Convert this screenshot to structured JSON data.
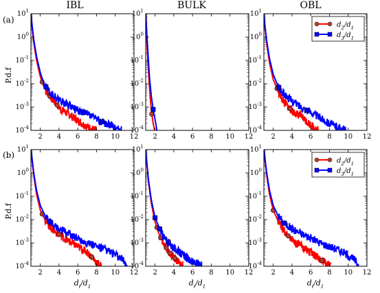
{
  "figure": {
    "column_titles": [
      "IBL",
      "BULK",
      "OBL"
    ],
    "row_labels": [
      "(a)",
      "(b)"
    ],
    "ylabel": "P.d.f",
    "xlabel": "d_i/d_1",
    "legend": [
      "d_2/d_1",
      "d_3/d_1"
    ]
  },
  "chart_data": [
    {
      "type": "line",
      "panel": "a-IBL",
      "title": "IBL",
      "row": "(a)",
      "xlabel": "",
      "ylabel": "P.d.f",
      "yscale": "log",
      "xlim": [
        1,
        12
      ],
      "ylim": [
        0.0001,
        10
      ],
      "xticks": [
        2,
        4,
        6,
        8,
        10,
        12
      ],
      "yticks": [
        0.0001,
        0.001,
        0.01,
        0.1,
        1,
        10
      ],
      "legend": "none",
      "grid": false,
      "series": [
        {
          "name": "d_2/d_1",
          "color": "#ff0000",
          "marker": "circle",
          "x": [
            1.0,
            1.1,
            1.3,
            1.6,
            2.0,
            2.4,
            3.0,
            3.6,
            4.2,
            5.0,
            5.8,
            6.6,
            7.4,
            8.0
          ],
          "y": [
            10,
            3,
            0.6,
            0.1,
            0.02,
            0.007,
            0.003,
            0.0015,
            0.0008,
            0.0005,
            0.0003,
            0.00018,
            0.00012,
            0.0001
          ],
          "markers_x": [
            2.2,
            3.0,
            3.8
          ]
        },
        {
          "name": "d_3/d_1",
          "color": "#0000ff",
          "marker": "square",
          "x": [
            1.0,
            1.1,
            1.3,
            1.6,
            2.0,
            2.4,
            3.0,
            4.0,
            5.0,
            6.0,
            7.0,
            8.0,
            9.0,
            10.0,
            10.7
          ],
          "y": [
            10,
            4,
            0.8,
            0.15,
            0.03,
            0.01,
            0.004,
            0.002,
            0.0012,
            0.0007,
            0.0005,
            0.0003,
            0.0002,
            0.00013,
            0.0001
          ],
          "markers_x": [
            2.6,
            6.6,
            8.6
          ]
        }
      ]
    },
    {
      "type": "line",
      "panel": "a-BULK",
      "title": "BULK",
      "row": "(a)",
      "xlabel": "",
      "ylabel": "",
      "yscale": "log",
      "xlim": [
        1,
        12
      ],
      "ylim": [
        0.0001,
        10
      ],
      "xticks": [
        2,
        4,
        6,
        8,
        10,
        12
      ],
      "yticks": [
        0.0001,
        0.001,
        0.01,
        0.1,
        1,
        10
      ],
      "legend": "none",
      "grid": false,
      "series": [
        {
          "name": "d_2/d_1",
          "color": "#ff0000",
          "marker": "circle",
          "x": [
            1.0,
            1.1,
            1.2,
            1.35,
            1.5,
            1.65,
            1.8,
            1.95
          ],
          "y": [
            10,
            1.5,
            0.15,
            0.015,
            0.002,
            0.0005,
            0.0002,
            0.0001
          ],
          "markers_x": [
            1.65
          ]
        },
        {
          "name": "d_3/d_1",
          "color": "#0000ff",
          "marker": "square",
          "x": [
            1.0,
            1.1,
            1.25,
            1.4,
            1.6,
            1.8,
            2.0,
            2.2
          ],
          "y": [
            10,
            2,
            0.2,
            0.02,
            0.003,
            0.0008,
            0.0003,
            0.0001
          ],
          "markers_x": [
            1.8
          ]
        }
      ]
    },
    {
      "type": "line",
      "panel": "a-OBL",
      "title": "OBL",
      "row": "(a)",
      "xlabel": "",
      "ylabel": "",
      "yscale": "log",
      "xlim": [
        1,
        12
      ],
      "ylim": [
        0.0001,
        10
      ],
      "xticks": [
        2,
        4,
        6,
        8,
        10,
        12
      ],
      "yticks": [
        0.0001,
        0.001,
        0.01,
        0.1,
        1,
        10
      ],
      "legend": "top-right",
      "grid": false,
      "series": [
        {
          "name": "d_2/d_1",
          "color": "#ff0000",
          "marker": "circle",
          "x": [
            1.0,
            1.1,
            1.3,
            1.6,
            2.0,
            2.5,
            3.0,
            3.6,
            4.2,
            5.0,
            5.8,
            6.4,
            6.8
          ],
          "y": [
            10,
            3,
            0.5,
            0.08,
            0.015,
            0.005,
            0.002,
            0.001,
            0.0006,
            0.0004,
            0.0002,
            0.00013,
            0.0001
          ],
          "markers_x": [
            2.4,
            3.8
          ]
        },
        {
          "name": "d_3/d_1",
          "color": "#0000ff",
          "marker": "square",
          "x": [
            1.0,
            1.1,
            1.3,
            1.6,
            2.0,
            2.5,
            3.0,
            4.0,
            5.0,
            6.0,
            7.0,
            8.0,
            9.0,
            9.8
          ],
          "y": [
            10,
            3.5,
            0.7,
            0.12,
            0.025,
            0.008,
            0.004,
            0.0018,
            0.001,
            0.0006,
            0.00035,
            0.0002,
            0.00013,
            0.0001
          ],
          "markers_x": [
            2.6,
            5.6
          ]
        }
      ]
    },
    {
      "type": "line",
      "panel": "b-IBL",
      "title": "",
      "row": "(b)",
      "xlabel": "d_i/d_1",
      "ylabel": "P.d.f",
      "yscale": "log",
      "xlim": [
        1,
        12
      ],
      "ylim": [
        0.0001,
        10
      ],
      "xticks": [
        2,
        4,
        6,
        8,
        10,
        12
      ],
      "yticks": [
        0.0001,
        0.001,
        0.01,
        0.1,
        1,
        10
      ],
      "legend": "none",
      "grid": false,
      "series": [
        {
          "name": "d_2/d_1",
          "color": "#ff0000",
          "marker": "circle",
          "x": [
            1.0,
            1.1,
            1.3,
            1.6,
            2.0,
            2.5,
            3.0,
            3.6,
            4.2,
            5.0,
            6.0,
            7.0,
            7.5,
            8.0,
            8.5
          ],
          "y": [
            10,
            4,
            0.8,
            0.12,
            0.025,
            0.01,
            0.005,
            0.003,
            0.002,
            0.0012,
            0.0007,
            0.0004,
            0.00025,
            0.00015,
            0.0001
          ],
          "markers_x": [
            2.2,
            4.0,
            7.5
          ]
        },
        {
          "name": "d_3/d_1",
          "color": "#0000ff",
          "marker": "square",
          "x": [
            1.0,
            1.1,
            1.3,
            1.6,
            2.0,
            2.5,
            3.0,
            4.0,
            5.0,
            6.0,
            7.0,
            8.0,
            9.0,
            10.0,
            10.8,
            11.3
          ],
          "y": [
            10,
            5,
            1,
            0.18,
            0.04,
            0.015,
            0.008,
            0.004,
            0.0025,
            0.0016,
            0.001,
            0.0007,
            0.0005,
            0.0003,
            0.00018,
            0.0001
          ],
          "markers_x": [
            3.0
          ]
        }
      ]
    },
    {
      "type": "line",
      "panel": "b-BULK",
      "title": "",
      "row": "(b)",
      "xlabel": "d_i/d_1",
      "ylabel": "",
      "yscale": "log",
      "xlim": [
        1,
        12
      ],
      "ylim": [
        0.0001,
        10
      ],
      "xticks": [
        2,
        4,
        6,
        8,
        10,
        12
      ],
      "yticks": [
        0.0001,
        0.001,
        0.01,
        0.1,
        1,
        10
      ],
      "legend": "none",
      "grid": false,
      "series": [
        {
          "name": "d_2/d_1",
          "color": "#ff0000",
          "marker": "circle",
          "x": [
            1.0,
            1.1,
            1.3,
            1.6,
            2.0,
            2.5,
            3.0,
            3.5,
            4.0,
            4.5,
            5.0
          ],
          "y": [
            10,
            3,
            0.4,
            0.05,
            0.008,
            0.002,
            0.0008,
            0.0004,
            0.00025,
            0.00014,
            0.0001
          ],
          "markers_x": [
            2.2,
            2.6,
            3.2,
            3.6,
            4.1
          ]
        },
        {
          "name": "d_3/d_1",
          "color": "#0000ff",
          "marker": "square",
          "x": [
            1.0,
            1.1,
            1.3,
            1.6,
            2.0,
            2.5,
            3.0,
            4.0,
            5.0,
            6.0,
            7.0
          ],
          "y": [
            10,
            3.5,
            0.5,
            0.07,
            0.012,
            0.004,
            0.0016,
            0.0006,
            0.0003,
            0.00015,
            0.0001
          ],
          "markers_x": [
            2.0,
            2.5,
            3.4
          ]
        }
      ]
    },
    {
      "type": "line",
      "panel": "b-OBL",
      "title": "",
      "row": "(b)",
      "xlabel": "d_i/d_1",
      "ylabel": "",
      "yscale": "log",
      "xlim": [
        1,
        12
      ],
      "ylim": [
        0.0001,
        10
      ],
      "xticks": [
        2,
        4,
        6,
        8,
        10,
        12
      ],
      "yticks": [
        0.0001,
        0.001,
        0.01,
        0.1,
        1,
        10
      ],
      "legend": "top-right",
      "grid": false,
      "series": [
        {
          "name": "d_2/d_1",
          "color": "#ff0000",
          "marker": "circle",
          "x": [
            1.0,
            1.1,
            1.3,
            1.6,
            2.0,
            2.5,
            3.0,
            3.6,
            4.2,
            5.0,
            6.0,
            7.0,
            7.6,
            8.1
          ],
          "y": [
            10,
            4,
            0.8,
            0.12,
            0.025,
            0.009,
            0.004,
            0.002,
            0.0012,
            0.0007,
            0.0004,
            0.0002,
            0.00014,
            0.0001
          ],
          "markers_x": [
            2.0,
            3.6,
            7.2
          ]
        },
        {
          "name": "d_3/d_1",
          "color": "#0000ff",
          "marker": "square",
          "x": [
            1.0,
            1.1,
            1.3,
            1.6,
            2.0,
            2.5,
            3.0,
            4.0,
            5.0,
            6.0,
            7.0,
            8.0,
            9.0,
            10.0,
            10.7,
            11.2
          ],
          "y": [
            10,
            5,
            1,
            0.18,
            0.04,
            0.015,
            0.008,
            0.004,
            0.0025,
            0.0016,
            0.001,
            0.0007,
            0.0005,
            0.0003,
            0.00018,
            0.0001
          ],
          "markers_x": [
            3.2
          ]
        }
      ]
    }
  ]
}
